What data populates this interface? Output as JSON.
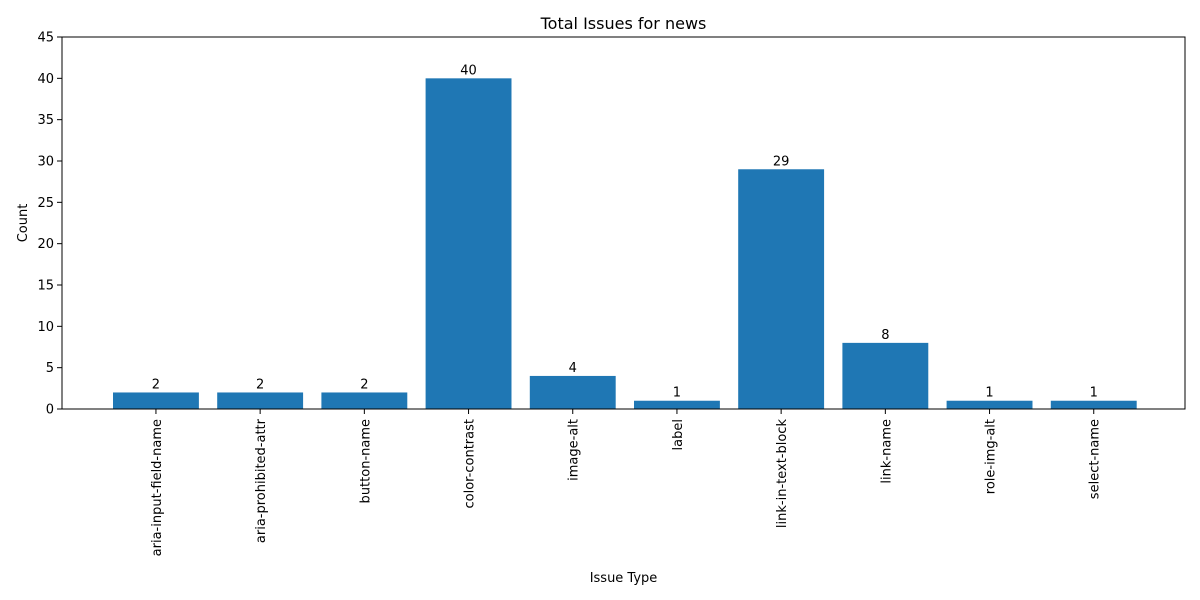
{
  "chart_data": {
    "type": "bar",
    "title": "Total Issues for news",
    "xlabel": "Issue Type",
    "ylabel": "Count",
    "categories": [
      "aria-input-field-name",
      "aria-prohibited-attr",
      "button-name",
      "color-contrast",
      "image-alt",
      "label",
      "link-in-text-block",
      "link-name",
      "role-img-alt",
      "select-name"
    ],
    "values": [
      2,
      2,
      2,
      40,
      4,
      1,
      29,
      8,
      1,
      1
    ],
    "data_labels": [
      "2",
      "2",
      "2",
      "40",
      "4",
      "1",
      "29",
      "8",
      "1",
      "1"
    ],
    "ylim": [
      0,
      45
    ],
    "yticks": [
      0,
      5,
      10,
      15,
      20,
      25,
      30,
      35,
      40,
      45
    ],
    "ytick_labels": [
      "0",
      "5",
      "10",
      "15",
      "20",
      "25",
      "30",
      "35",
      "40",
      "45"
    ],
    "bar_color": "#1f77b4",
    "grid": false,
    "legend": "none"
  }
}
